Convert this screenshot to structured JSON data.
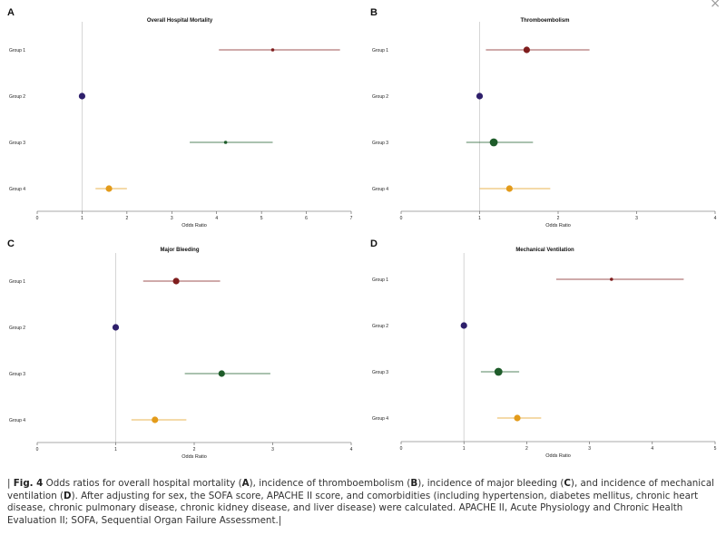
{
  "window": {
    "close_glyph": "×",
    "close_icon": "close-icon"
  },
  "colors": {
    "group1": "#7f1d1d",
    "group2": "#2e1f6b",
    "group3": "#1e5c2a",
    "group4": "#e39b1a",
    "refline": "#cccccc",
    "axis": "#555555"
  },
  "chart_data": [
    {
      "letter": "A",
      "title": "Overall Hospital Mortality",
      "type": "scatter",
      "xlabel": "Odds Ratio",
      "xlim": [
        0,
        7
      ],
      "xticks": [
        0,
        1,
        2,
        3,
        4,
        5,
        6,
        7
      ],
      "reference": 1,
      "rows": [
        {
          "label": "Group 1",
          "or": 5.25,
          "lo": 4.05,
          "hi": 6.75,
          "size": "small"
        },
        {
          "label": "Group 2",
          "or": 1.0,
          "lo": 1.0,
          "hi": 1.0,
          "size": "medium"
        },
        {
          "label": "Group 3",
          "or": 4.2,
          "lo": 3.4,
          "hi": 5.25,
          "size": "small"
        },
        {
          "label": "Group 4",
          "or": 1.6,
          "lo": 1.3,
          "hi": 2.0,
          "size": "medium"
        }
      ]
    },
    {
      "letter": "B",
      "title": "Thromboembolism",
      "type": "scatter",
      "xlabel": "Odds Ratio",
      "xlim": [
        0,
        4
      ],
      "xticks": [
        0,
        1,
        2,
        3,
        4
      ],
      "reference": 1,
      "rows": [
        {
          "label": "Group 1",
          "or": 1.6,
          "lo": 1.08,
          "hi": 2.4,
          "size": "medium"
        },
        {
          "label": "Group 2",
          "or": 1.0,
          "lo": 1.0,
          "hi": 1.0,
          "size": "medium"
        },
        {
          "label": "Group 3",
          "or": 1.18,
          "lo": 0.83,
          "hi": 1.68,
          "size": "large"
        },
        {
          "label": "Group 4",
          "or": 1.38,
          "lo": 1.0,
          "hi": 1.9,
          "size": "medium"
        }
      ]
    },
    {
      "letter": "C",
      "title": "Major Bleeding",
      "type": "scatter",
      "xlabel": "Odds Ratio",
      "xlim": [
        0,
        4
      ],
      "xticks": [
        0,
        1,
        2,
        3,
        4
      ],
      "reference": 1,
      "rows": [
        {
          "label": "Group 1",
          "or": 1.77,
          "lo": 1.35,
          "hi": 2.33,
          "size": "medium"
        },
        {
          "label": "Group 2",
          "or": 1.0,
          "lo": 1.0,
          "hi": 1.0,
          "size": "medium"
        },
        {
          "label": "Group 3",
          "or": 2.35,
          "lo": 1.88,
          "hi": 2.97,
          "size": "medium"
        },
        {
          "label": "Group 4",
          "or": 1.5,
          "lo": 1.2,
          "hi": 1.9,
          "size": "medium"
        }
      ]
    },
    {
      "letter": "D",
      "title": "Mechanical Ventilation",
      "type": "scatter",
      "xlabel": "Odds Ratio",
      "xlim": [
        0,
        5
      ],
      "xticks": [
        0,
        1,
        2,
        3,
        4,
        5
      ],
      "reference": 1,
      "rows": [
        {
          "label": "Group 1",
          "or": 3.35,
          "lo": 2.47,
          "hi": 4.5,
          "size": "small"
        },
        {
          "label": "Group 2",
          "or": 1.0,
          "lo": 1.0,
          "hi": 1.0,
          "size": "medium"
        },
        {
          "label": "Group 3",
          "or": 1.55,
          "lo": 1.27,
          "hi": 1.88,
          "size": "large"
        },
        {
          "label": "Group 4",
          "or": 1.85,
          "lo": 1.53,
          "hi": 2.23,
          "size": "medium"
        }
      ]
    }
  ],
  "caption": {
    "prefix": "| ",
    "fig_label": "Fig. 4",
    "t1": " Odds ratios for overall hospital mortality (",
    "A": "A",
    "t2": "), incidence of thromboembolism (",
    "B": "B",
    "t3": "), incidence of major bleeding (",
    "C": "C",
    "t4": "), and incidence of mechanical ventilation (",
    "D": "D",
    "t5": "). After adjusting for sex, the SOFA score, APACHE II score, and comorbidities (including hypertension, diabetes mellitus, chronic heart disease, chronic pulmonary disease, chronic kidney disease, and liver disease) were calculated. APACHE II, Acute Physiology and Chronic Health Evaluation II; SOFA, Sequential Organ Failure Assessment.|"
  }
}
